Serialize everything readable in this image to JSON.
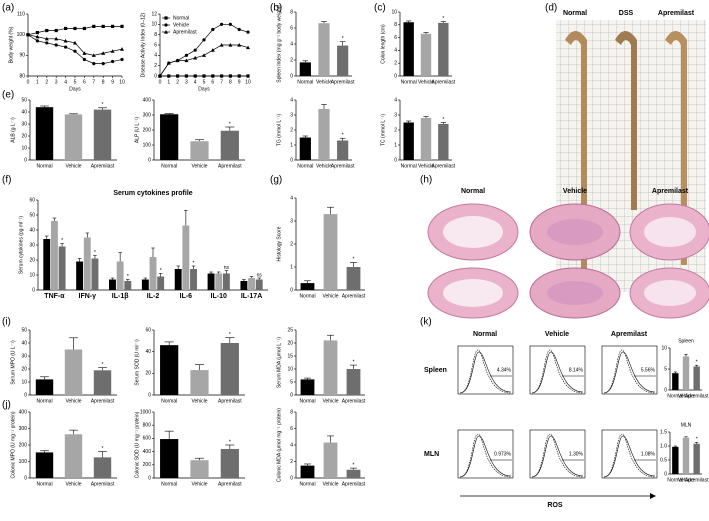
{
  "panel_labels": [
    "(a)",
    "(b)",
    "(c)",
    "(d)",
    "(e)",
    "(f)",
    "(g)",
    "(h)",
    "(i)",
    "(j)",
    "(k)"
  ],
  "chart_data": [
    {
      "type": "line",
      "ylabel": "Body weight (%)",
      "xlabel": "Days",
      "x": [
        0,
        1,
        2,
        3,
        4,
        5,
        6,
        7,
        8,
        9,
        10
      ],
      "xlim": [
        0,
        10
      ],
      "xticks": [
        0,
        1,
        2,
        3,
        4,
        5,
        6,
        7,
        8,
        9,
        10
      ],
      "ylim": [
        80,
        110
      ],
      "yticks": [
        80,
        90,
        100,
        110
      ],
      "series": [
        {
          "name": "Normal",
          "color": "#000",
          "marker": "square",
          "values": [
            100,
            101,
            102,
            102,
            103,
            103,
            103,
            104,
            104,
            104,
            104
          ]
        },
        {
          "name": "Vehicle",
          "color": "#000",
          "marker": "circle",
          "values": [
            100,
            97,
            96,
            95,
            94,
            92,
            88,
            86,
            86,
            87,
            88
          ]
        },
        {
          "name": "Apremilast",
          "color": "#000",
          "marker": "triangle",
          "values": [
            100,
            99,
            98,
            98,
            97,
            96,
            91,
            90,
            91,
            92,
            93
          ]
        }
      ]
    },
    {
      "type": "line",
      "ylabel": "Disease Activity Index (0–12)",
      "xlabel": "Days",
      "legend": "upper left",
      "x": [
        0,
        1,
        2,
        3,
        4,
        5,
        6,
        7,
        8,
        9,
        10
      ],
      "xlim": [
        0,
        10
      ],
      "xticks": [
        0,
        1,
        2,
        3,
        4,
        5,
        6,
        7,
        8,
        9,
        10
      ],
      "ylim": [
        0,
        12
      ],
      "yticks": [
        0,
        2,
        4,
        6,
        8,
        10,
        12
      ],
      "series": [
        {
          "name": "Normal",
          "color": "#000",
          "marker": "square",
          "values": [
            0,
            0,
            0,
            0,
            0,
            0,
            0,
            0,
            0,
            0,
            0
          ]
        },
        {
          "name": "Vehicle",
          "color": "#000",
          "marker": "circle",
          "values": [
            0,
            2.5,
            3,
            4,
            5,
            7,
            9,
            10,
            10,
            9,
            8.5
          ]
        },
        {
          "name": "Apremilast",
          "color": "#000",
          "marker": "triangle",
          "values": [
            0,
            2.5,
            3,
            3,
            3.5,
            4,
            5,
            6,
            6,
            6,
            5.5
          ]
        }
      ]
    },
    {
      "type": "bar",
      "ylabel": "Spleen Index (mg g⁻¹ body weight)",
      "categories": [
        "Normal",
        "Vehicle",
        "Apremilast"
      ],
      "values": [
        1.7,
        6.6,
        3.8
      ],
      "errors": [
        0.2,
        0.2,
        0.5
      ],
      "significance": [
        null,
        null,
        "*"
      ],
      "colors": [
        "#000",
        "#a6a6a6",
        "#6e6e6e"
      ],
      "ylim": [
        0,
        8
      ],
      "yticks": [
        0,
        2,
        4,
        6,
        8
      ]
    },
    {
      "type": "bar",
      "ylabel": "Colon length (cm)",
      "categories": [
        "Normal",
        "Vehicle",
        "Apremilast"
      ],
      "values": [
        8.4,
        6.6,
        8.3
      ],
      "errors": [
        0.2,
        0.2,
        0.2
      ],
      "significance": [
        null,
        null,
        "*"
      ],
      "colors": [
        "#000",
        "#a6a6a6",
        "#6e6e6e"
      ],
      "ylim": [
        0,
        10
      ],
      "yticks": [
        0,
        2,
        4,
        6,
        8,
        10
      ]
    },
    {
      "type": "bar",
      "ylabel": "ALB (g L⁻¹)",
      "categories": [
        "Normal",
        "Vehicle",
        "Apremilast"
      ],
      "values": [
        44,
        38,
        42
      ],
      "errors": [
        1,
        0.5,
        1.5
      ],
      "significance": [
        null,
        null,
        "*"
      ],
      "colors": [
        "#000",
        "#a6a6a6",
        "#6e6e6e"
      ],
      "ylim": [
        0,
        50
      ],
      "yticks": [
        0,
        10,
        20,
        30,
        40,
        50
      ]
    },
    {
      "type": "bar",
      "ylabel": "ALP (U L⁻¹)",
      "categories": [
        "Normal",
        "Vehicle",
        "Apremilast"
      ],
      "values": [
        305,
        125,
        195
      ],
      "errors": [
        5,
        10,
        25
      ],
      "significance": [
        null,
        null,
        "*"
      ],
      "colors": [
        "#000",
        "#a6a6a6",
        "#6e6e6e"
      ],
      "ylim": [
        0,
        400
      ],
      "yticks": [
        0,
        100,
        200,
        300,
        400
      ]
    },
    {
      "type": "bar",
      "ylabel": "TG (mmol L⁻¹)",
      "categories": [
        "Normal",
        "Vehicle",
        "Apremilast"
      ],
      "values": [
        1.5,
        3.4,
        1.3
      ],
      "errors": [
        0.1,
        0.3,
        0.15
      ],
      "significance": [
        null,
        null,
        "*"
      ],
      "colors": [
        "#000",
        "#a6a6a6",
        "#6e6e6e"
      ],
      "ylim": [
        0,
        4
      ],
      "yticks": [
        0,
        1,
        2,
        3,
        4
      ]
    },
    {
      "type": "bar",
      "ylabel": "TC (mmol L⁻¹)",
      "categories": [
        "Normal",
        "Vehicle",
        "Apremilast"
      ],
      "values": [
        2.5,
        2.8,
        2.4
      ],
      "errors": [
        0.1,
        0.1,
        0.1
      ],
      "significance": [
        null,
        null,
        "*"
      ],
      "colors": [
        "#000",
        "#a6a6a6",
        "#6e6e6e"
      ],
      "ylim": [
        0,
        4
      ],
      "yticks": [
        0,
        1,
        2,
        3,
        4
      ]
    },
    {
      "type": "bar",
      "title": "Serum cytokines profile",
      "ylabel": "Serum cytokines (pg ml⁻¹)",
      "categories": [
        "TNF-α",
        "IFN-γ",
        "IL-1β",
        "IL-2",
        "IL-6",
        "IL-10",
        "IL-17A"
      ],
      "ylim": [
        0,
        60
      ],
      "yticks": [
        0,
        10,
        20,
        30,
        40,
        50,
        60
      ],
      "series": [
        {
          "name": "Normal",
          "color": "#000",
          "values": [
            34,
            19,
            7,
            7,
            14,
            11,
            6
          ],
          "errors": [
            2,
            2,
            1,
            1,
            2,
            1,
            1
          ]
        },
        {
          "name": "Vehicle",
          "color": "#a6a6a6",
          "values": [
            46,
            35,
            19,
            22,
            43,
            11,
            8
          ],
          "errors": [
            2,
            3,
            6,
            6,
            10,
            1,
            1
          ],
          "significance": [
            null,
            null,
            null,
            null,
            null,
            null,
            null
          ]
        },
        {
          "name": "Apremilast",
          "color": "#6e6e6e",
          "values": [
            29,
            21,
            6,
            9,
            14,
            11,
            7
          ],
          "errors": [
            2,
            2,
            1,
            2,
            2,
            2,
            1
          ],
          "significance": [
            "*",
            "*",
            "*",
            "*",
            "*",
            "ns",
            "ns"
          ]
        }
      ]
    },
    {
      "type": "bar",
      "ylabel": "Histology Score",
      "categories": [
        "Normal",
        "Vehicle",
        "Apremilast"
      ],
      "values": [
        0.3,
        3.3,
        1.0
      ],
      "errors": [
        0.1,
        0.3,
        0.2
      ],
      "significance": [
        null,
        null,
        "*"
      ],
      "colors": [
        "#000",
        "#a6a6a6",
        "#6e6e6e"
      ],
      "ylim": [
        0,
        4
      ],
      "yticks": [
        0,
        1,
        2,
        3,
        4
      ]
    },
    {
      "type": "bar",
      "ylabel": "Serum MPO (U L⁻¹)",
      "categories": [
        "Normal",
        "Vehicle",
        "Apremilast"
      ],
      "values": [
        12,
        35,
        19
      ],
      "errors": [
        2,
        9,
        2
      ],
      "significance": [
        null,
        null,
        "*"
      ],
      "colors": [
        "#000",
        "#a6a6a6",
        "#6e6e6e"
      ],
      "ylim": [
        0,
        50
      ],
      "yticks": [
        0,
        10,
        20,
        30,
        40,
        50
      ]
    },
    {
      "type": "bar",
      "ylabel": "Serum SOD (U ml⁻¹)",
      "categories": [
        "Normal",
        "Vehicle",
        "Apremilast"
      ],
      "values": [
        46,
        23,
        48
      ],
      "errors": [
        3,
        5,
        5
      ],
      "significance": [
        null,
        null,
        "*"
      ],
      "colors": [
        "#000",
        "#a6a6a6",
        "#6e6e6e"
      ],
      "ylim": [
        0,
        60
      ],
      "yticks": [
        0,
        20,
        40,
        60
      ]
    },
    {
      "type": "bar",
      "ylabel": "Serum MDA (μmol L⁻¹)",
      "categories": [
        "Normal",
        "Vehicle",
        "Apremilast"
      ],
      "values": [
        6,
        21,
        10
      ],
      "errors": [
        0.5,
        2,
        1.5
      ],
      "significance": [
        null,
        null,
        "*"
      ],
      "colors": [
        "#000",
        "#a6a6a6",
        "#6e6e6e"
      ],
      "ylim": [
        0,
        25
      ],
      "yticks": [
        0,
        5,
        10,
        15,
        20,
        25
      ]
    },
    {
      "type": "bar",
      "ylabel": "Colonic MPO (U mg⁻¹ protein)",
      "categories": [
        "Normal",
        "Vehicle",
        "Apremilast"
      ],
      "values": [
        155,
        265,
        125
      ],
      "errors": [
        10,
        25,
        35
      ],
      "significance": [
        null,
        null,
        "*"
      ],
      "colors": [
        "#000",
        "#a6a6a6",
        "#6e6e6e"
      ],
      "ylim": [
        0,
        400
      ],
      "yticks": [
        0,
        100,
        200,
        300,
        400
      ]
    },
    {
      "type": "bar",
      "ylabel": "Colonic SOD (U mg⁻¹ protein)",
      "categories": [
        "Normal",
        "Vehicle",
        "Apremilast"
      ],
      "values": [
        590,
        270,
        440
      ],
      "errors": [
        120,
        30,
        60
      ],
      "significance": [
        null,
        null,
        "*"
      ],
      "colors": [
        "#000",
        "#a6a6a6",
        "#6e6e6e"
      ],
      "ylim": [
        0,
        1000
      ],
      "yticks": [
        0,
        200,
        400,
        600,
        800,
        1000
      ]
    },
    {
      "type": "bar",
      "ylabel": "Colonic MDA (μmol mg⁻¹ protein)",
      "categories": [
        "Normal",
        "Vehicle",
        "Apremilast"
      ],
      "values": [
        1.5,
        4.3,
        1.0
      ],
      "errors": [
        0.2,
        0.8,
        0.2
      ],
      "significance": [
        null,
        null,
        "*"
      ],
      "colors": [
        "#000",
        "#a6a6a6",
        "#6e6e6e"
      ],
      "ylim": [
        0,
        8
      ],
      "yticks": [
        0,
        2,
        4,
        6,
        8
      ]
    },
    {
      "type": "bar",
      "title": "Spleen",
      "ylabel": "ROS⁺ cells %",
      "categories": [
        "Normal",
        "Vehicle",
        "Apremilast"
      ],
      "values": [
        4,
        8,
        5.6
      ],
      "errors": [
        0.3,
        0.5,
        0.3
      ],
      "significance": [
        null,
        null,
        "*"
      ],
      "colors": [
        "#000",
        "#a6a6a6",
        "#6e6e6e"
      ],
      "ylim": [
        0,
        10
      ],
      "yticks": [
        0,
        5,
        10
      ]
    },
    {
      "type": "bar",
      "title": "MLN",
      "ylabel": "ROS⁺ cells %",
      "categories": [
        "Normal",
        "Vehicle",
        "Apremilast"
      ],
      "values": [
        0.97,
        1.3,
        1.08
      ],
      "errors": [
        0.03,
        0.03,
        0.05
      ],
      "significance": [
        null,
        null,
        "*"
      ],
      "colors": [
        "#000",
        "#a6a6a6",
        "#6e6e6e"
      ],
      "ylim": [
        0,
        1.5
      ],
      "yticks": [
        0,
        0.5,
        {
          "value": 1,
          "label": "1.0"
        },
        1.5
      ]
    }
  ],
  "photo": {
    "labels": [
      "Normal",
      "DSS",
      "Apremilast"
    ]
  },
  "histology": {
    "labels": [
      "Normal",
      "Vehicle",
      "Apremilast"
    ]
  },
  "flow": {
    "rows": [
      "Spleen",
      "MLN"
    ],
    "columns": [
      "Normal",
      "Vehicle",
      "Apremilast"
    ],
    "percentages": [
      [
        "4.34%",
        "8.14%",
        "5.56%"
      ],
      [
        "0.973%",
        "1.30%",
        "1.08%"
      ]
    ],
    "xlabel": "ROS"
  }
}
